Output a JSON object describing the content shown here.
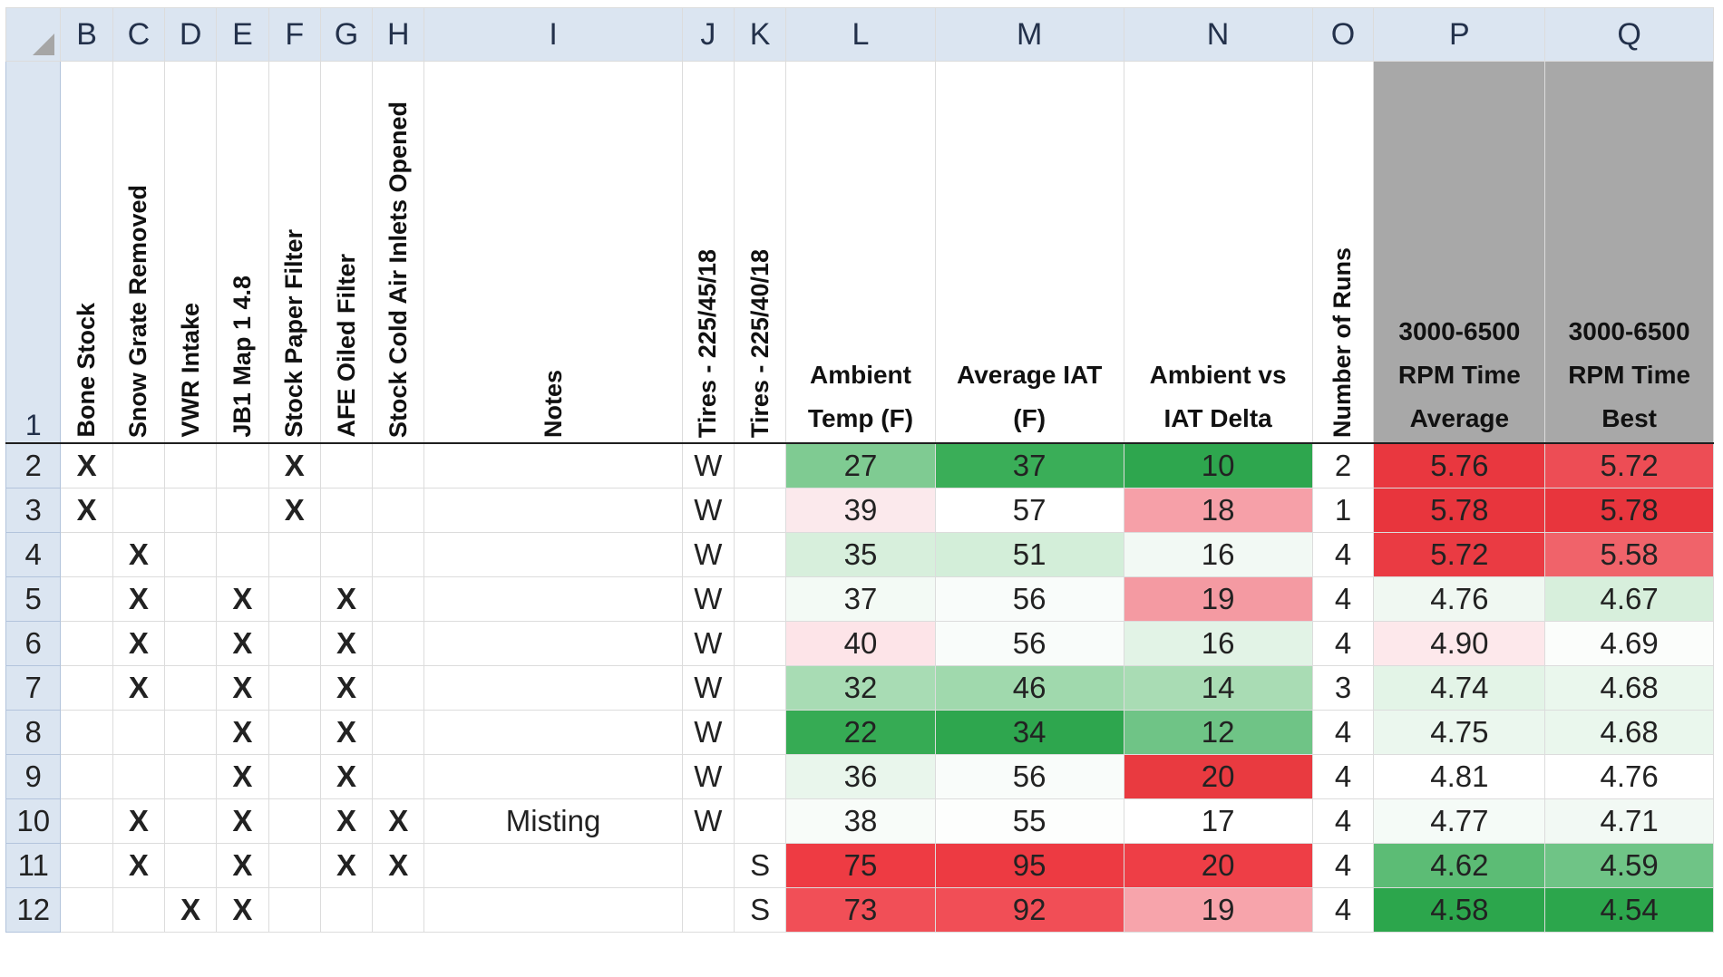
{
  "colors": {
    "header_bg": "#dbe5f1",
    "time_header_bg": "#a8a8a8",
    "scale_low_green": "#2aa84a",
    "scale_mid_white": "#ffffff",
    "scale_high_red": "#e8323a"
  },
  "column_letters": [
    "B",
    "C",
    "D",
    "E",
    "F",
    "G",
    "H",
    "I",
    "J",
    "K",
    "L",
    "M",
    "N",
    "O",
    "P",
    "Q"
  ],
  "header_row_number": "1",
  "headers": {
    "B": "Bone Stock",
    "C": "Snow Grate Removed",
    "D": "VWR Intake",
    "E": "JB1 Map 1 4.8",
    "F": "Stock Paper Filter",
    "G": "AFE Oiled Filter",
    "H": "Stock Cold Air Inlets Opened",
    "I": "Notes",
    "J": "Tires - 225/45/18",
    "K": "Tires - 225/40/18",
    "L": [
      "Ambient",
      "Temp (F)"
    ],
    "M": [
      "Average IAT",
      "(F)"
    ],
    "N": [
      "Ambient vs",
      "IAT Delta"
    ],
    "O": "Number of Runs",
    "P": [
      "3000-6500",
      "RPM Time",
      "Average"
    ],
    "Q": [
      "3000-6500",
      "RPM Time",
      "Best"
    ]
  },
  "rows": [
    {
      "num": "2",
      "B": "X",
      "C": "",
      "D": "",
      "E": "",
      "F": "X",
      "G": "",
      "H": "",
      "I": "",
      "J": "W",
      "K": "",
      "L": "27",
      "M": "37",
      "N": "10",
      "O": "2",
      "P": "5.76",
      "Q": "5.72"
    },
    {
      "num": "3",
      "B": "X",
      "C": "",
      "D": "",
      "E": "",
      "F": "X",
      "G": "",
      "H": "",
      "I": "",
      "J": "W",
      "K": "",
      "L": "39",
      "M": "57",
      "N": "18",
      "O": "1",
      "P": "5.78",
      "Q": "5.78"
    },
    {
      "num": "4",
      "B": "",
      "C": "X",
      "D": "",
      "E": "",
      "F": "",
      "G": "",
      "H": "",
      "I": "",
      "J": "W",
      "K": "",
      "L": "35",
      "M": "51",
      "N": "16",
      "O": "4",
      "P": "5.72",
      "Q": "5.58"
    },
    {
      "num": "5",
      "B": "",
      "C": "X",
      "D": "",
      "E": "X",
      "F": "",
      "G": "X",
      "H": "",
      "I": "",
      "J": "W",
      "K": "",
      "L": "37",
      "M": "56",
      "N": "19",
      "O": "4",
      "P": "4.76",
      "Q": "4.67"
    },
    {
      "num": "6",
      "B": "",
      "C": "X",
      "D": "",
      "E": "X",
      "F": "",
      "G": "X",
      "H": "",
      "I": "",
      "J": "W",
      "K": "",
      "L": "40",
      "M": "56",
      "N": "16",
      "O": "4",
      "P": "4.90",
      "Q": "4.69"
    },
    {
      "num": "7",
      "B": "",
      "C": "X",
      "D": "",
      "E": "X",
      "F": "",
      "G": "X",
      "H": "",
      "I": "",
      "J": "W",
      "K": "",
      "L": "32",
      "M": "46",
      "N": "14",
      "O": "3",
      "P": "4.74",
      "Q": "4.68"
    },
    {
      "num": "8",
      "B": "",
      "C": "",
      "D": "",
      "E": "X",
      "F": "",
      "G": "X",
      "H": "",
      "I": "",
      "J": "W",
      "K": "",
      "L": "22",
      "M": "34",
      "N": "12",
      "O": "4",
      "P": "4.75",
      "Q": "4.68"
    },
    {
      "num": "9",
      "B": "",
      "C": "",
      "D": "",
      "E": "X",
      "F": "",
      "G": "X",
      "H": "",
      "I": "",
      "J": "W",
      "K": "",
      "L": "36",
      "M": "56",
      "N": "20",
      "O": "4",
      "P": "4.81",
      "Q": "4.76"
    },
    {
      "num": "10",
      "B": "",
      "C": "X",
      "D": "",
      "E": "X",
      "F": "",
      "G": "X",
      "H": "X",
      "I": "Misting",
      "J": "W",
      "K": "",
      "L": "38",
      "M": "55",
      "N": "17",
      "O": "4",
      "P": "4.77",
      "Q": "4.71"
    },
    {
      "num": "11",
      "B": "",
      "C": "X",
      "D": "",
      "E": "X",
      "F": "",
      "G": "X",
      "H": "X",
      "I": "",
      "J": "",
      "K": "S",
      "L": "75",
      "M": "95",
      "N": "20",
      "O": "4",
      "P": "4.62",
      "Q": "4.59"
    },
    {
      "num": "12",
      "B": "",
      "C": "",
      "D": "X",
      "E": "X",
      "F": "",
      "G": "",
      "H": "",
      "I": "",
      "J": "",
      "K": "S",
      "L": "73",
      "M": "92",
      "N": "19",
      "O": "4",
      "P": "4.58",
      "Q": "4.54"
    }
  ],
  "cell_colors": {
    "L": [
      "#7fcb92",
      "#fbe9ec",
      "#d7efdc",
      "#f3faf5",
      "#fde4e8",
      "#a8dcb4",
      "#36ab54",
      "#e9f6ec",
      "#f8fcf9",
      "#ee3b43",
      "#f14f57"
    ],
    "M": [
      "#3aae58",
      "#ffffff",
      "#d3eed9",
      "#f9fcfa",
      "#f9fcfa",
      "#a0d9ad",
      "#2ea64e",
      "#f9fcfa",
      "#fdfefd",
      "#ed3a42",
      "#f14e56"
    ],
    "N": [
      "#2ea64e",
      "#f6a0a8",
      "#f2f9f4",
      "#f49aa2",
      "#e2f3e6",
      "#a9dcb4",
      "#6fc486",
      "#e93a40",
      "#ffffff",
      "#ee3e46",
      "#f7a4ab"
    ],
    "P": [
      "#e9373f",
      "#e8353d",
      "#ea3b43",
      "#f0f8f2",
      "#fde8eb",
      "#e3f4e7",
      "#ebf7ee",
      "#ffffff",
      "#f5fbf7",
      "#5cbc75",
      "#2ca64c"
    ],
    "Q": [
      "#ed4d55",
      "#e8353d",
      "#f0636a",
      "#d7efdc",
      "#fbfdfb",
      "#eaf7ed",
      "#eaf7ed",
      "#ffffff",
      "#f2f9f4",
      "#6fc486",
      "#2ca64c"
    ]
  }
}
